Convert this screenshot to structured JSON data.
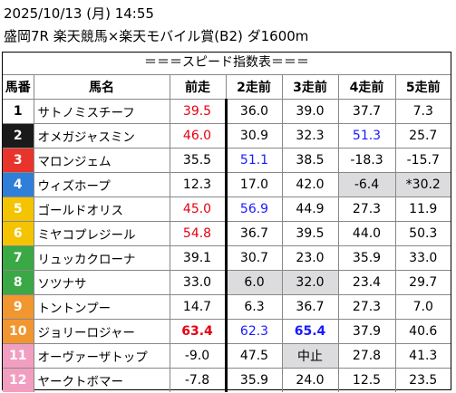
{
  "header": {
    "datetime": "2025/10/13 (月) 14:55",
    "race": "盛岡7R 楽天競馬×楽天モバイル賞(B2) ダ1600m"
  },
  "table_title": "＝＝＝スピード指数表＝＝＝",
  "columns": [
    "馬番",
    "馬名",
    "前走",
    "2走前",
    "3走前",
    "4走前",
    "5走前"
  ],
  "rows": [
    {
      "num": "1",
      "name": "サトノミスチーフ",
      "vals": [
        "39.5",
        "36.0",
        "39.0",
        "37.7",
        "7.3"
      ],
      "bg": "#ffffff",
      "fg": "#000000",
      "styles": [
        "red",
        "",
        "",
        "",
        ""
      ],
      "gray": [
        false,
        false,
        false,
        false,
        false
      ]
    },
    {
      "num": "2",
      "name": "オメガジャスミン",
      "vals": [
        "46.0",
        "30.9",
        "32.3",
        "51.3",
        "25.7"
      ],
      "bg": "#1a1a1a",
      "fg": "#ffffff",
      "styles": [
        "red",
        "",
        "",
        "blue",
        ""
      ],
      "gray": [
        false,
        false,
        false,
        false,
        false
      ]
    },
    {
      "num": "3",
      "name": "マロンジェム",
      "vals": [
        "35.5",
        "51.1",
        "38.5",
        "-18.3",
        "-15.7"
      ],
      "bg": "#e8342b",
      "fg": "#ffffff",
      "styles": [
        "",
        "blue",
        "",
        "",
        ""
      ],
      "gray": [
        false,
        false,
        false,
        false,
        false
      ]
    },
    {
      "num": "4",
      "name": "ウィズホープ",
      "vals": [
        "12.3",
        "17.0",
        "42.0",
        "-6.4",
        "*30.2"
      ],
      "bg": "#2f7fd8",
      "fg": "#ffffff",
      "styles": [
        "",
        "",
        "",
        "",
        ""
      ],
      "gray": [
        false,
        false,
        false,
        true,
        true
      ]
    },
    {
      "num": "5",
      "name": "ゴールドオリス",
      "vals": [
        "45.0",
        "56.9",
        "44.9",
        "27.3",
        "11.9"
      ],
      "bg": "#f4c400",
      "fg": "#ffffff",
      "styles": [
        "red",
        "blue",
        "",
        "",
        ""
      ],
      "gray": [
        false,
        false,
        false,
        false,
        false
      ]
    },
    {
      "num": "6",
      "name": "ミヤコプレジール",
      "vals": [
        "54.8",
        "36.7",
        "39.5",
        "44.0",
        "50.3"
      ],
      "bg": "#f4c400",
      "fg": "#ffffff",
      "styles": [
        "red",
        "",
        "",
        "",
        ""
      ],
      "gray": [
        false,
        false,
        false,
        false,
        false
      ]
    },
    {
      "num": "7",
      "name": "リュッカクローナ",
      "vals": [
        "39.1",
        "30.7",
        "23.0",
        "35.9",
        "33.0"
      ],
      "bg": "#3aa845",
      "fg": "#ffffff",
      "styles": [
        "",
        "",
        "",
        "",
        ""
      ],
      "gray": [
        false,
        false,
        false,
        false,
        false
      ]
    },
    {
      "num": "8",
      "name": "ソツナサ",
      "vals": [
        "33.0",
        "6.0",
        "32.0",
        "23.4",
        "29.7"
      ],
      "bg": "#3aa845",
      "fg": "#ffffff",
      "styles": [
        "",
        "",
        "",
        "",
        ""
      ],
      "gray": [
        false,
        true,
        true,
        false,
        false
      ]
    },
    {
      "num": "9",
      "name": "トントンプー",
      "vals": [
        "14.7",
        "6.3",
        "36.7",
        "27.3",
        "7.0"
      ],
      "bg": "#f29630",
      "fg": "#ffffff",
      "styles": [
        "",
        "",
        "",
        "",
        ""
      ],
      "gray": [
        false,
        false,
        false,
        false,
        false
      ]
    },
    {
      "num": "10",
      "name": "ジョリーロジャー",
      "vals": [
        "63.4",
        "62.3",
        "65.4",
        "37.9",
        "40.6"
      ],
      "bg": "#f29630",
      "fg": "#ffffff",
      "styles": [
        "red bold",
        "blue",
        "blue bold",
        "",
        ""
      ],
      "gray": [
        false,
        false,
        false,
        false,
        false
      ]
    },
    {
      "num": "11",
      "name": "オーヴァーザトップ",
      "vals": [
        "-9.0",
        "47.5",
        "中止",
        "27.8",
        "41.3"
      ],
      "bg": "#f29ec0",
      "fg": "#ffffff",
      "styles": [
        "",
        "",
        "",
        "",
        ""
      ],
      "gray": [
        false,
        false,
        true,
        false,
        false
      ]
    },
    {
      "num": "12",
      "name": "ヤークトボマー",
      "vals": [
        "-7.8",
        "35.9",
        "24.0",
        "12.5",
        "23.5"
      ],
      "bg": "#f29ec0",
      "fg": "#ffffff",
      "styles": [
        "",
        "",
        "",
        "",
        ""
      ],
      "gray": [
        false,
        false,
        false,
        false,
        false
      ]
    }
  ]
}
